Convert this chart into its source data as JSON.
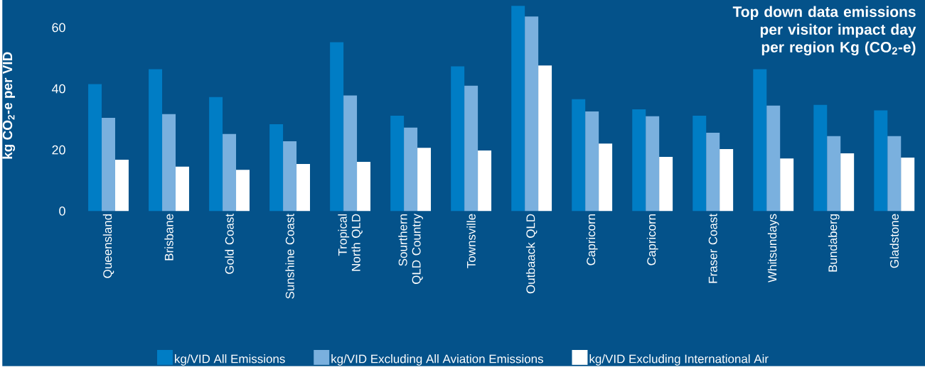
{
  "chart_data": {
    "type": "bar",
    "title": "Top down data emissions per visitor impact day per region Kg (CO$_{2}$-e)",
    "ylabel": "kg CO$_{2}$-e per VID",
    "categories": [
      "Queensland",
      "Brisbane",
      "Gold Coast",
      "Sunshine Coast",
      "Tropical North QLD",
      "Sourthern QLD Country",
      "Townsville",
      "Outbaack QLD",
      "Capricorn",
      "Capricorn",
      "Fraser Coast",
      "Whitsundays",
      "Bundaberg",
      "Gladstone"
    ],
    "series": [
      {
        "name": "kg/VID All Emissions",
        "color": "#007dc5",
        "values": [
          41.5,
          46.4,
          37.3,
          28.4,
          55.2,
          31.2,
          47.3,
          67.1,
          36.6,
          33.3,
          31.2,
          46.4,
          34.7,
          32.9
        ]
      },
      {
        "name": "kg/VID Excluding All Aviation Emissions",
        "color": "#7ab0de",
        "values": [
          30.5,
          31.7,
          25.2,
          22.8,
          37.8,
          27.3,
          41.0,
          63.6,
          32.6,
          31.0,
          25.6,
          34.5,
          24.5,
          24.5
        ]
      },
      {
        "name": "kg/VID Excluding International Air",
        "color": "#ffffff",
        "values": [
          16.8,
          14.5,
          13.5,
          15.4,
          16.1,
          20.7,
          19.8,
          47.6,
          22.1,
          17.7,
          20.3,
          17.2,
          18.9,
          17.5
        ]
      }
    ],
    "ylim": [
      0,
      69
    ],
    "yticks": [
      0,
      20,
      40,
      60
    ],
    "grid": false,
    "legend": "bottom"
  }
}
